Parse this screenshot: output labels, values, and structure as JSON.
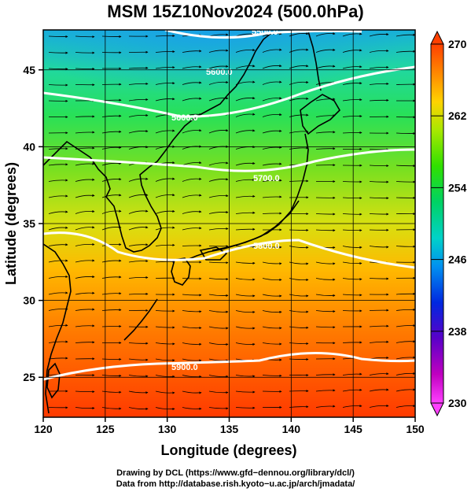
{
  "title": "MSM 15Z10Nov2024 (500.0hPa)",
  "chart_data": {
    "type": "map",
    "title": "MSM 15Z10Nov2024 (500.0hPa)",
    "xlabel": "Longitude (degrees)",
    "ylabel": "Latitude  (degrees)",
    "xlim": [
      120,
      150
    ],
    "ylim": [
      22.4,
      47.6
    ],
    "x_ticks": [
      120,
      125,
      130,
      135,
      140,
      145,
      150
    ],
    "y_ticks": [
      25,
      30,
      35,
      40,
      45
    ],
    "colorbar": {
      "min": 230,
      "max": 270,
      "ticks": [
        230,
        238,
        246,
        254,
        262,
        270
      ],
      "colors": [
        "#ff40ff",
        "#c000c0",
        "#5a00c8",
        "#0028e0",
        "#0090f0",
        "#00d2c8",
        "#00d264",
        "#30e000",
        "#a8e800",
        "#ffd200",
        "#ff9000",
        "#ff4000",
        "#e82800"
      ]
    },
    "contour_levels": [
      {
        "value": 5500,
        "label": "5500.0"
      },
      {
        "value": 5600,
        "label": "5600.0"
      },
      {
        "value": 5700,
        "label": "5700.0"
      },
      {
        "value": 5800,
        "label": "5800.0"
      },
      {
        "value": 5900,
        "label": "5900.0"
      }
    ],
    "field": "temperature (K) shaded, geopotential height contours, wind vectors"
  },
  "credits": {
    "line1": "Drawing by DCL (https://www.gfd−dennou.org/library/dcl/)",
    "line2": "Data from http://database.rish.kyoto−u.ac.jp/arch/jmadata/"
  }
}
